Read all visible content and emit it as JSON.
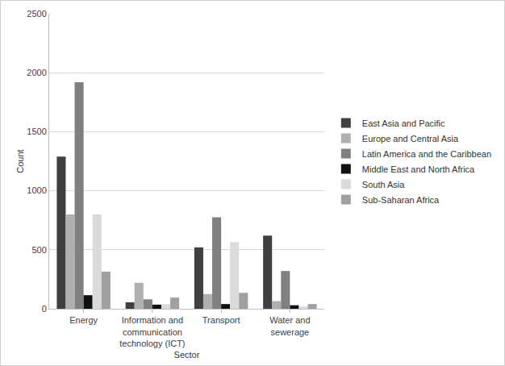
{
  "chart_data": {
    "type": "bar",
    "x_label": "Sector",
    "y_label": "Count",
    "categories": [
      "Energy",
      "Information and communication technology (ICT)",
      "Transport",
      "Water and sewerage"
    ],
    "series": [
      {
        "name": "East Asia and Pacific",
        "color": "#404040",
        "values": [
          1290,
          55,
          520,
          620
        ]
      },
      {
        "name": "Europe and Central Asia",
        "color": "#b0b0b0",
        "values": [
          800,
          220,
          125,
          65
        ]
      },
      {
        "name": "Latin America and the Caribbean",
        "color": "#808080",
        "values": [
          1920,
          80,
          775,
          320
        ]
      },
      {
        "name": "Middle East and North Africa",
        "color": "#111111",
        "values": [
          115,
          35,
          40,
          30
        ]
      },
      {
        "name": "South Asia",
        "color": "#dadada",
        "values": [
          800,
          40,
          565,
          20
        ]
      },
      {
        "name": "Sub-Saharan Africa",
        "color": "#a0a0a0",
        "values": [
          315,
          95,
          135,
          40
        ]
      }
    ],
    "ylim": [
      0,
      2500
    ],
    "yticks": [
      0,
      500,
      1000,
      1500,
      2000,
      2500
    ],
    "grid": true,
    "legend": "right"
  }
}
